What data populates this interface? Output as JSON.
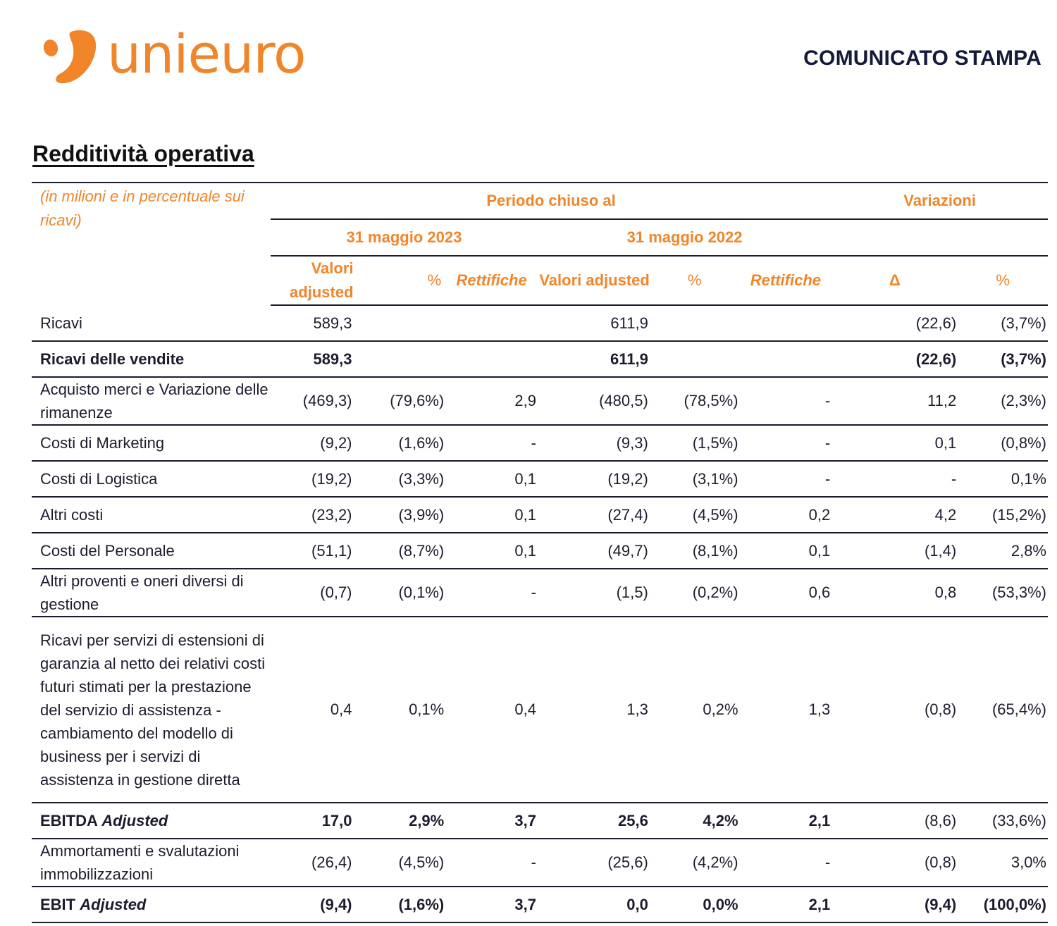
{
  "header": {
    "logo_text": "unieuro",
    "press_label": "COMUNICATO STAMPA",
    "brand_color": "#f0852a"
  },
  "section": {
    "title": "Redditività operativa"
  },
  "table": {
    "unit_note": "(in milioni e in percentuale sui ricavi)",
    "period_header": "Periodo chiuso al",
    "variations_header": "Variazioni",
    "date_2023": "31 maggio 2023",
    "date_2022": "31 maggio 2022",
    "sub_headers": {
      "adj_2023": "Valori adjusted",
      "pct_2023": "%",
      "rett_2023": "Rettifiche",
      "adj_2022": "Valori adjusted",
      "pct_2022": "%",
      "rett_2022": "Rettifiche",
      "delta": "Δ",
      "delta_pct": "%"
    },
    "rows": [
      {
        "label": "Ricavi",
        "v": [
          "589,3",
          "",
          "",
          "611,9",
          "",
          "",
          "(22,6)",
          "(3,7%)"
        ]
      },
      {
        "label": "Ricavi delle vendite",
        "v": [
          "589,3",
          "",
          "",
          "611,9",
          "",
          "",
          "(22,6)",
          "(3,7%)"
        ]
      },
      {
        "label": "Acquisto merci e Variazione delle rimanenze",
        "v": [
          "(469,3)",
          "(79,6%)",
          "2,9",
          "(480,5)",
          "(78,5%)",
          "-",
          "11,2",
          "(2,3%)"
        ]
      },
      {
        "label": "Costi di Marketing",
        "v": [
          "(9,2)",
          "(1,6%)",
          "-",
          "(9,3)",
          "(1,5%)",
          "-",
          "0,1",
          "(0,8%)"
        ]
      },
      {
        "label": "Costi di Logistica",
        "v": [
          "(19,2)",
          "(3,3%)",
          "0,1",
          "(19,2)",
          "(3,1%)",
          "-",
          "-",
          "0,1%"
        ]
      },
      {
        "label": "Altri costi",
        "v": [
          "(23,2)",
          "(3,9%)",
          "0,1",
          "(27,4)",
          "(4,5%)",
          "0,2",
          "4,2",
          "(15,2%)"
        ]
      },
      {
        "label": "Costi del Personale",
        "v": [
          "(51,1)",
          "(8,7%)",
          "0,1",
          "(49,7)",
          "(8,1%)",
          "0,1",
          "(1,4)",
          "2,8%"
        ]
      },
      {
        "label": "Altri proventi e oneri diversi di gestione",
        "v": [
          "(0,7)",
          "(0,1%)",
          "-",
          "(1,5)",
          "(0,2%)",
          "0,6",
          "0,8",
          "(53,3%)"
        ]
      },
      {
        "label": "Ricavi per servizi di estensioni di garanzia al netto dei relativi costi futuri stimati per la prestazione del servizio di assistenza - cambiamento del modello di business per i servizi di assistenza in gestione diretta",
        "v": [
          "0,4",
          "0,1%",
          "0,4",
          "1,3",
          "0,2%",
          "1,3",
          "(0,8)",
          "(65,4%)"
        ]
      },
      {
        "label_main": "EBITDA",
        "label_ital": "Adjusted",
        "v": [
          "17,0",
          "2,9%",
          "3,7",
          "25,6",
          "4,2%",
          "2,1",
          "(8,6)",
          "(33,6%)"
        ]
      },
      {
        "label": "Ammortamenti e svalutazioni immobilizzazioni",
        "v": [
          "(26,4)",
          "(4,5%)",
          "-",
          "(25,6)",
          "(4,2%)",
          "-",
          "(0,8)",
          "3,0%"
        ]
      },
      {
        "label_main": "EBIT",
        "label_ital": "Adjusted",
        "v": [
          "(9,4)",
          "(1,6%)",
          "3,7",
          "0,0",
          "0,0%",
          "2,1",
          "(9,4)",
          "(100,0%)"
        ]
      }
    ]
  }
}
